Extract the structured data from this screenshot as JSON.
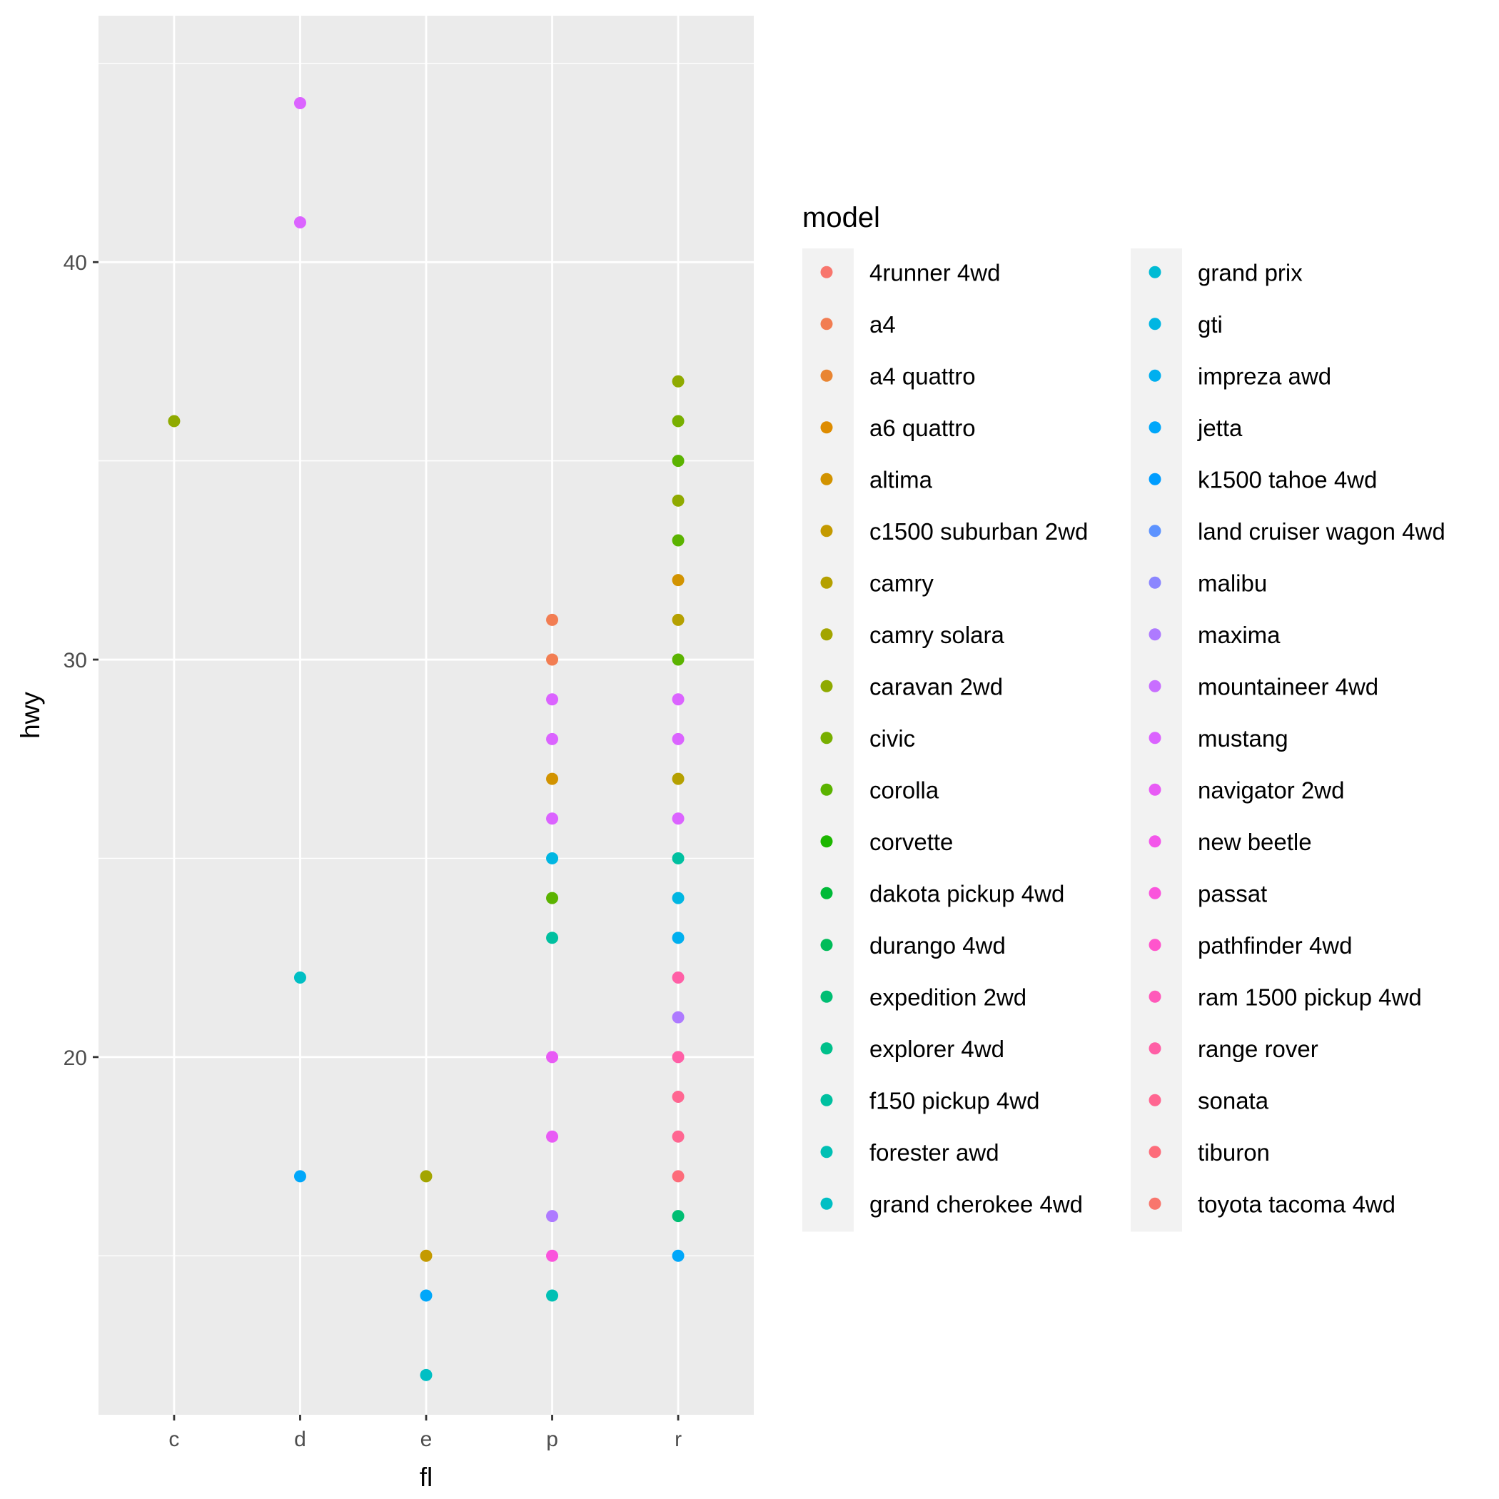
{
  "chart_data": {
    "type": "scatter",
    "xlabel": "fl",
    "ylabel": "hwy",
    "categories": [
      "c",
      "d",
      "e",
      "p",
      "r"
    ],
    "ylim": [
      11,
      46.2
    ],
    "yticks": [
      20,
      30,
      40
    ],
    "grid": true,
    "legend": {
      "title": "model",
      "position": "right",
      "columns": 2
    },
    "series": [
      {
        "name": "4runner 4wd",
        "color": "#F8766D",
        "points": []
      },
      {
        "name": "a4",
        "color": "#F27D52",
        "points": [
          [
            "p",
            31
          ],
          [
            "p",
            30
          ]
        ]
      },
      {
        "name": "a4 quattro",
        "color": "#E98532",
        "points": []
      },
      {
        "name": "a6 quattro",
        "color": "#DE8C00",
        "points": []
      },
      {
        "name": "altima",
        "color": "#D29300",
        "points": [
          [
            "p",
            27
          ],
          [
            "r",
            32
          ]
        ]
      },
      {
        "name": "c1500 suburban 2wd",
        "color": "#C49A00",
        "points": [
          [
            "e",
            15
          ]
        ]
      },
      {
        "name": "camry",
        "color": "#B5A000",
        "points": [
          [
            "r",
            31
          ],
          [
            "r",
            27
          ]
        ]
      },
      {
        "name": "camry solara",
        "color": "#A3A500",
        "points": [
          [
            "e",
            17
          ]
        ]
      },
      {
        "name": "caravan 2wd",
        "color": "#8FAA00",
        "points": [
          [
            "c",
            36
          ],
          [
            "r",
            37
          ],
          [
            "r",
            34
          ]
        ]
      },
      {
        "name": "civic",
        "color": "#78AF00",
        "points": [
          [
            "r",
            36
          ]
        ]
      },
      {
        "name": "corolla",
        "color": "#5BB300",
        "points": [
          [
            "p",
            24
          ],
          [
            "r",
            35
          ],
          [
            "r",
            33
          ],
          [
            "r",
            30
          ]
        ]
      },
      {
        "name": "corvette",
        "color": "#1DB700",
        "points": []
      },
      {
        "name": "dakota pickup 4wd",
        "color": "#00BA38",
        "points": []
      },
      {
        "name": "durango 4wd",
        "color": "#00BC59",
        "points": []
      },
      {
        "name": "expedition 2wd",
        "color": "#00BE73",
        "points": [
          [
            "r",
            16
          ]
        ]
      },
      {
        "name": "explorer 4wd",
        "color": "#00C08B",
        "points": []
      },
      {
        "name": "f150 pickup 4wd",
        "color": "#00C0A0",
        "points": [
          [
            "p",
            23
          ],
          [
            "r",
            25
          ]
        ]
      },
      {
        "name": "forester awd",
        "color": "#00C0B4",
        "points": [
          [
            "p",
            14
          ]
        ]
      },
      {
        "name": "grand cherokee 4wd",
        "color": "#00BFC4",
        "points": [
          [
            "d",
            22
          ],
          [
            "e",
            12
          ]
        ]
      },
      {
        "name": "grand prix",
        "color": "#00BBD4",
        "points": []
      },
      {
        "name": "gti",
        "color": "#00B6E2",
        "points": [
          [
            "p",
            25
          ],
          [
            "r",
            24
          ]
        ]
      },
      {
        "name": "impreza awd",
        "color": "#00AFEF",
        "points": [
          [
            "r",
            23
          ]
        ]
      },
      {
        "name": "jetta",
        "color": "#00A7FA",
        "points": [
          [
            "d",
            17
          ],
          [
            "e",
            14
          ],
          [
            "r",
            15
          ]
        ]
      },
      {
        "name": "k1500 tahoe 4wd",
        "color": "#009DFF",
        "points": []
      },
      {
        "name": "land cruiser wagon 4wd",
        "color": "#5D93FF",
        "points": []
      },
      {
        "name": "malibu",
        "color": "#8B86FF",
        "points": []
      },
      {
        "name": "maxima",
        "color": "#AE7AFF",
        "points": [
          [
            "p",
            16
          ],
          [
            "r",
            21
          ]
        ]
      },
      {
        "name": "mountaineer 4wd",
        "color": "#C86EFF",
        "points": []
      },
      {
        "name": "mustang",
        "color": "#DB63FF",
        "points": [
          [
            "d",
            44
          ],
          [
            "d",
            41
          ],
          [
            "p",
            29
          ],
          [
            "p",
            28
          ],
          [
            "p",
            26
          ],
          [
            "r",
            29
          ],
          [
            "r",
            28
          ],
          [
            "r",
            26
          ]
        ]
      },
      {
        "name": "navigator 2wd",
        "color": "#E85BF5",
        "points": [
          [
            "p",
            20
          ],
          [
            "p",
            18
          ]
        ]
      },
      {
        "name": "new beetle",
        "color": "#F356EA",
        "points": []
      },
      {
        "name": "passat",
        "color": "#FA54DC",
        "points": [
          [
            "p",
            15
          ]
        ]
      },
      {
        "name": "pathfinder 4wd",
        "color": "#FF55CC",
        "points": []
      },
      {
        "name": "ram 1500 pickup 4wd",
        "color": "#FF59BA",
        "points": []
      },
      {
        "name": "range rover",
        "color": "#FF5FA6",
        "points": [
          [
            "r",
            22
          ],
          [
            "r",
            20
          ]
        ]
      },
      {
        "name": "sonata",
        "color": "#FF6691",
        "points": [
          [
            "r",
            19
          ],
          [
            "r",
            18
          ]
        ]
      },
      {
        "name": "tiburon",
        "color": "#FD6C7A",
        "points": [
          [
            "r",
            17
          ]
        ]
      },
      {
        "name": "toyota tacoma 4wd",
        "color": "#F8766D",
        "points": []
      }
    ]
  }
}
